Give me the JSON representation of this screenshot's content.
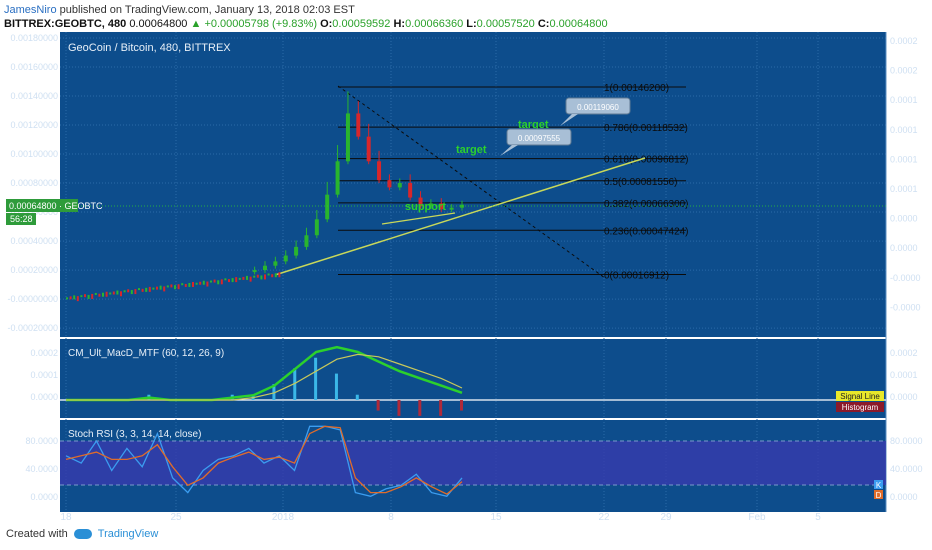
{
  "header": {
    "author": "JamesNiro",
    "published_text": "published on TradingView.com, January 13, 2018 02:03 EST",
    "symbol": "BITTREX:GEOBTC, 480",
    "last": "0.00064800",
    "change": "+0.00005798 (+9.83%)",
    "open_label": "O:",
    "open": "0.00059592",
    "high_label": "H:",
    "high": "0.00066360",
    "low_label": "L:",
    "low": "0.00057520",
    "close_label": "C:",
    "close": "0.00064800"
  },
  "footer": {
    "created_with": "Created with",
    "brand": "TradingView"
  },
  "colors": {
    "panel_bg": "#0d4d8c",
    "bull": "#29b52e",
    "bear": "#d8262b",
    "trend": "#c8d85a",
    "macd": "#2cd12c",
    "signal": "#c8c85a",
    "stoch_k": "#3b9df0",
    "stoch_d": "#e06c2a",
    "rsi_band": "#3a3ab0"
  },
  "chart_data": [
    {
      "type": "candlestick",
      "title": "GeoCoin / Bitcoin, 480, BITTREX",
      "ylim": [
        -0.00022,
        0.0018
      ],
      "yticks": [
        "0.00180000",
        "0.00160000",
        "0.00140000",
        "0.00120000",
        "0.00100000",
        "0.00080000",
        "0.00060000",
        "0.00040000",
        "0.00020000",
        "-0.00000000",
        "-0.00020000"
      ],
      "right_ticks": [
        "0.0002",
        "0.0002",
        "0.0001",
        "0.0001",
        "0.0001",
        "0.0001",
        "0.0000",
        "0.0000",
        "-0.0000",
        "-0.0000"
      ],
      "xticks": [
        "18",
        "25",
        "2018",
        "8",
        "15",
        "22",
        "29",
        "Feb",
        "5"
      ],
      "price_tag": "0.00064800 · GEOBTC",
      "countdown": "56:28",
      "fib_levels": [
        {
          "label": "1(0.00146200)",
          "value": 0.001462
        },
        {
          "label": "0.786(0.00118532)",
          "value": 0.00118532
        },
        {
          "label": "0.618(0.00096812)",
          "value": 0.00096812
        },
        {
          "label": "0.5(0.00081556)",
          "value": 0.00081556
        },
        {
          "label": "0.382(0.00066300)",
          "value": 0.000663
        },
        {
          "label": "0.236(0.00047424)",
          "value": 0.00047424
        },
        {
          "label": "0(0.00016912)",
          "value": 0.00016912
        }
      ],
      "annotations": [
        {
          "text": "target",
          "price": 0.0011906,
          "price_label": "0.00119060"
        },
        {
          "text": "target",
          "price": 0.00097555,
          "price_label": "0.00097555"
        },
        {
          "text": "support"
        }
      ],
      "close_series": [
        0.0,
        1e-05,
        2e-05,
        3e-05,
        4e-05,
        6e-05,
        7e-05,
        9e-05,
        0.0001,
        0.00012,
        0.00013,
        0.00014,
        0.00015,
        0.00016,
        0.00017,
        0.00017,
        0.00018,
        0.00019,
        0.0002,
        0.00023,
        0.00026,
        0.0003,
        0.00036,
        0.00044,
        0.00055,
        0.00072,
        0.00095,
        0.00128,
        0.00112,
        0.00095,
        0.00082,
        0.00077,
        0.0008,
        0.0007,
        0.00064,
        0.00066,
        0.00062,
        0.00063,
        0.00065
      ]
    },
    {
      "type": "line",
      "title": "CM_Ult_MacD_MTF (60, 12, 26, 9)",
      "yticks": [
        "0.0002",
        "0.0001",
        "0.0000"
      ],
      "legend": [
        "Signal Line",
        "Histogram"
      ],
      "series": [
        {
          "values": [
            0.0,
            0.0,
            0.0,
            0.0,
            1e-05,
            0.0,
            0.0,
            0.0,
            1e-05,
            2e-05,
            6e-05,
            0.00013,
            0.0002,
            0.00022,
            0.0002,
            0.00016,
            0.00012,
            9e-05,
            6e-05,
            3e-05
          ]
        },
        {
          "name": "Signal Line",
          "values": [
            0.0,
            0.0,
            0.0,
            0.0,
            0.0,
            0.0,
            0.0,
            0.0,
            0.0,
            1e-05,
            3e-05,
            7e-05,
            0.00012,
            0.00017,
            0.00019,
            0.00018,
            0.00015,
            0.00012,
            9e-05,
            5e-05
          ]
        }
      ]
    },
    {
      "type": "line",
      "title": "Stoch RSI (3, 3, 14, 14, close)",
      "yticks": [
        "80.0000",
        "40.0000",
        "0.0000"
      ],
      "legend": [
        "K",
        "D"
      ],
      "series": [
        {
          "name": "K",
          "values": [
            60,
            50,
            80,
            40,
            70,
            45,
            90,
            30,
            10,
            40,
            55,
            60,
            70,
            50,
            60,
            40,
            100,
            100,
            95,
            10,
            5,
            15,
            20,
            35,
            10,
            5,
            30
          ]
        },
        {
          "name": "D",
          "values": [
            55,
            60,
            65,
            55,
            55,
            60,
            75,
            45,
            20,
            30,
            50,
            58,
            65,
            55,
            58,
            50,
            90,
            100,
            98,
            30,
            10,
            10,
            18,
            30,
            18,
            8,
            25
          ]
        }
      ]
    }
  ]
}
